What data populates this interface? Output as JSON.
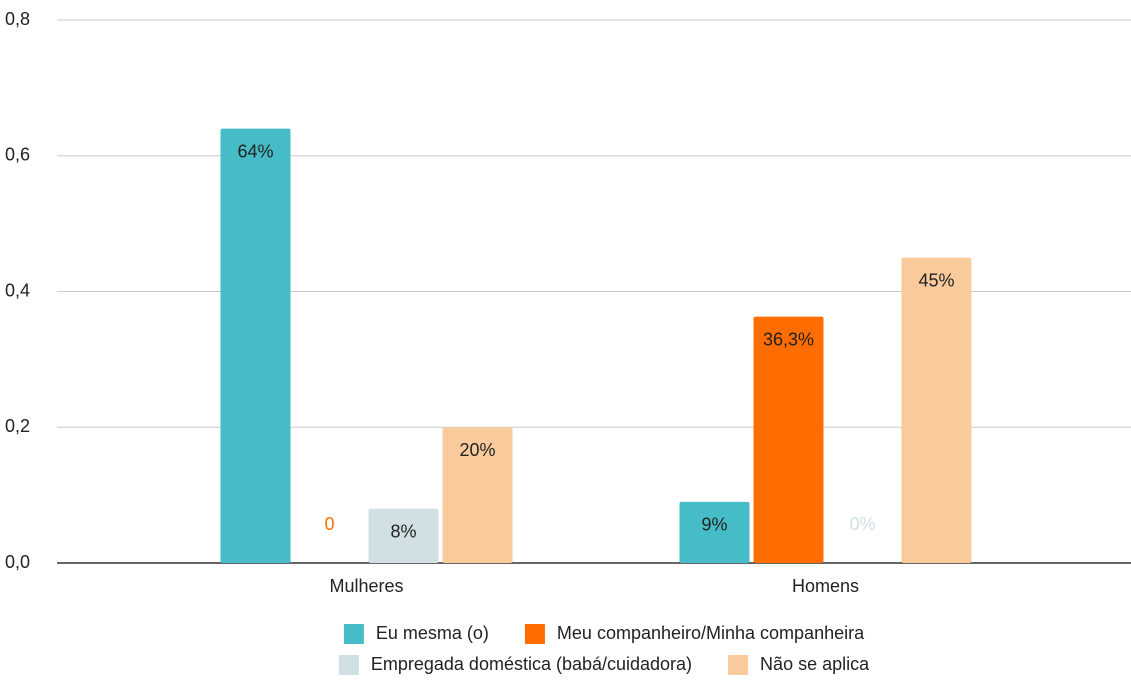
{
  "chart_data": {
    "type": "bar",
    "categories": [
      "Mulheres",
      "Homens"
    ],
    "series": [
      {
        "name": "Eu mesma (o)",
        "color": "#46bdc6",
        "values": [
          0.64,
          0.09
        ],
        "value_labels": [
          "64%",
          "9%"
        ]
      },
      {
        "name": "Meu companheiro/Minha companheira",
        "color": "#ff6d01",
        "values": [
          0,
          0.363
        ],
        "value_labels": [
          "0",
          "36,3%"
        ]
      },
      {
        "name": "Empregada doméstica (babá/cuidadora)",
        "color": "#d0e0e3",
        "values": [
          0.08,
          0
        ],
        "value_labels": [
          "8%",
          "0%"
        ]
      },
      {
        "name": "Não se aplica",
        "color": "#f9cb9c",
        "values": [
          0.2,
          0.45
        ],
        "value_labels": [
          "20%",
          "45%"
        ]
      }
    ],
    "ylim": [
      0,
      0.8
    ],
    "yticks": [
      {
        "value": 0,
        "label": "0,0"
      },
      {
        "value": 0.2,
        "label": "0,2"
      },
      {
        "value": 0.4,
        "label": "0,4"
      },
      {
        "value": 0.6,
        "label": "0,6"
      },
      {
        "value": 0.8,
        "label": "0,8"
      }
    ],
    "grid": true,
    "legend": "bottom"
  }
}
